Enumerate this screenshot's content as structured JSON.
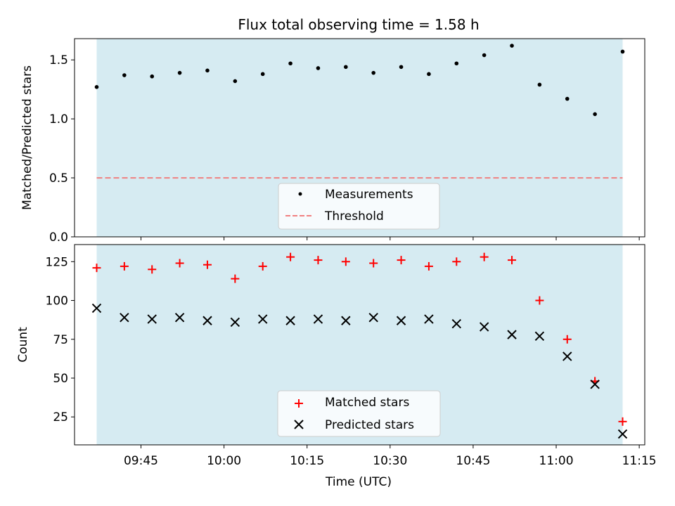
{
  "chart_data": [
    {
      "type": "scatter",
      "title": "Flux total observing time = 1.58 h",
      "ylabel": "Matched/Predicted stars",
      "xlabel": "",
      "ylim": [
        0,
        1.68
      ],
      "y_ticks": [
        0.0,
        0.5,
        1.0,
        1.5
      ],
      "y_tick_labels": [
        "0.0",
        "0.5",
        "1.0",
        "1.5"
      ],
      "shaded_region": {
        "from": "09:37",
        "to": "11:12",
        "color": "#add8e6"
      },
      "threshold": {
        "name": "Threshold",
        "value": 0.5,
        "color": "#f08080"
      },
      "series": [
        {
          "name": "Measurements",
          "marker": "dot",
          "color": "#000000",
          "x": [
            "09:37",
            "09:42",
            "09:47",
            "09:52",
            "09:57",
            "10:02",
            "10:07",
            "10:12",
            "10:17",
            "10:22",
            "10:27",
            "10:32",
            "10:37",
            "10:42",
            "10:47",
            "10:52",
            "10:57",
            "11:02",
            "11:07",
            "11:12"
          ],
          "y": [
            1.27,
            1.37,
            1.36,
            1.39,
            1.41,
            1.32,
            1.38,
            1.47,
            1.43,
            1.44,
            1.39,
            1.44,
            1.38,
            1.47,
            1.54,
            1.62,
            1.29,
            1.17,
            1.04,
            1.57
          ]
        }
      ],
      "legend": {
        "placement": "lower-center",
        "entries": [
          "Measurements",
          "Threshold"
        ]
      }
    },
    {
      "type": "scatter",
      "title": "",
      "ylabel": "Count",
      "xlabel": "Time (UTC)",
      "ylim": [
        7,
        136
      ],
      "y_ticks": [
        25,
        50,
        75,
        100,
        125
      ],
      "y_tick_labels": [
        "25",
        "50",
        "75",
        "100",
        "125"
      ],
      "x_ticks": [
        "09:45",
        "10:00",
        "10:15",
        "10:30",
        "10:45",
        "11:00",
        "11:15"
      ],
      "x_tick_labels": [
        "09:45",
        "10:00",
        "10:15",
        "10:30",
        "10:45",
        "11:00",
        "11:15"
      ],
      "xlim": [
        "09:33",
        "11:16"
      ],
      "shaded_region": {
        "from": "09:37",
        "to": "11:12",
        "color": "#add8e6"
      },
      "series": [
        {
          "name": "Matched stars",
          "marker": "plus",
          "color": "#ff0000",
          "x": [
            "09:37",
            "09:42",
            "09:47",
            "09:52",
            "09:57",
            "10:02",
            "10:07",
            "10:12",
            "10:17",
            "10:22",
            "10:27",
            "10:32",
            "10:37",
            "10:42",
            "10:47",
            "10:52",
            "10:57",
            "11:02",
            "11:07",
            "11:12"
          ],
          "y": [
            121,
            122,
            120,
            124,
            123,
            114,
            122,
            128,
            126,
            125,
            124,
            126,
            122,
            125,
            128,
            126,
            100,
            75,
            48,
            22
          ]
        },
        {
          "name": "Predicted stars",
          "marker": "x",
          "color": "#000000",
          "x": [
            "09:37",
            "09:42",
            "09:47",
            "09:52",
            "09:57",
            "10:02",
            "10:07",
            "10:12",
            "10:17",
            "10:22",
            "10:27",
            "10:32",
            "10:37",
            "10:42",
            "10:47",
            "10:52",
            "10:57",
            "11:02",
            "11:07",
            "11:12"
          ],
          "y": [
            95,
            89,
            88,
            89,
            87,
            86,
            88,
            87,
            88,
            87,
            89,
            87,
            88,
            85,
            83,
            78,
            77,
            64,
            46,
            14
          ]
        }
      ],
      "legend": {
        "placement": "lower-center",
        "entries": [
          "Matched stars",
          "Predicted stars"
        ]
      }
    }
  ]
}
